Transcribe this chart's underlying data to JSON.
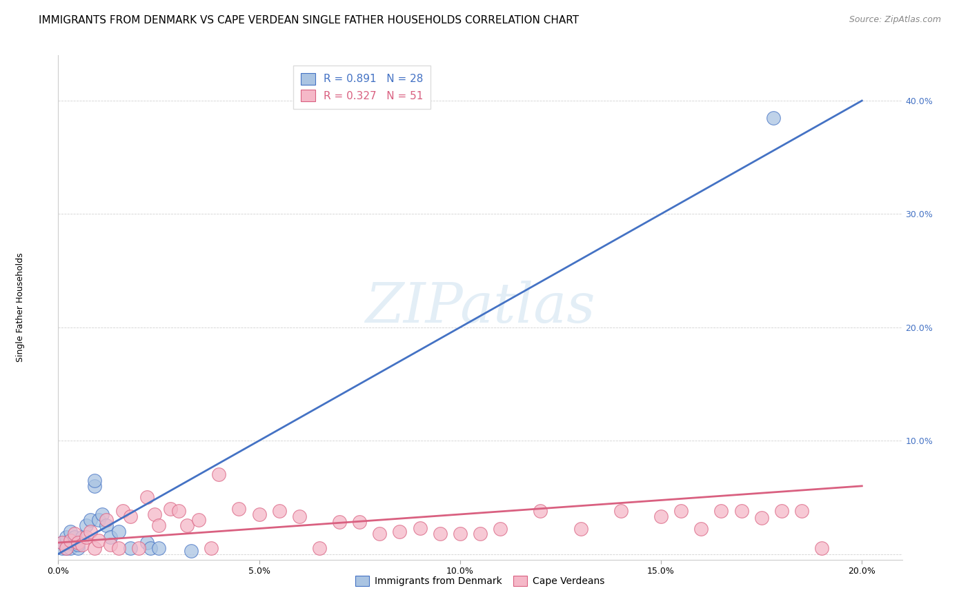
{
  "title": "IMMIGRANTS FROM DENMARK VS CAPE VERDEAN SINGLE FATHER HOUSEHOLDS CORRELATION CHART",
  "source": "Source: ZipAtlas.com",
  "ylabel": "Single Father Households",
  "ytick_values": [
    0.0,
    0.1,
    0.2,
    0.3,
    0.4
  ],
  "ytick_labels": [
    "",
    "10.0%",
    "20.0%",
    "30.0%",
    "40.0%"
  ],
  "xtick_values": [
    0.0,
    0.05,
    0.1,
    0.15,
    0.2
  ],
  "xtick_labels": [
    "0.0%",
    "5.0%",
    "10.0%",
    "15.0%",
    "20.0%"
  ],
  "xlim": [
    0.0,
    0.21
  ],
  "ylim": [
    -0.005,
    0.44
  ],
  "background_color": "#ffffff",
  "watermark": "ZIPatlas",
  "denmark_color": "#aac4e2",
  "denmark_edge_color": "#4472c4",
  "capeverde_color": "#f5b8c8",
  "capeverde_edge_color": "#d96080",
  "denmark_line_color": "#4472c4",
  "capeverde_line_color": "#d96080",
  "legend_text1": "R = 0.891   N = 28",
  "legend_text2": "R = 0.327   N = 51",
  "legend_color1": "#4472c4",
  "legend_color2": "#d96080",
  "bottom_legend1": "Immigrants from Denmark",
  "bottom_legend2": "Cape Verdeans",
  "title_fontsize": 11,
  "source_fontsize": 9,
  "axis_label_fontsize": 9,
  "tick_fontsize": 9,
  "legend_fontsize": 11,
  "denmark_x": [
    0.001,
    0.001,
    0.002,
    0.002,
    0.002,
    0.003,
    0.003,
    0.003,
    0.004,
    0.004,
    0.005,
    0.005,
    0.006,
    0.007,
    0.008,
    0.009,
    0.009,
    0.01,
    0.011,
    0.012,
    0.013,
    0.015,
    0.018,
    0.022,
    0.023,
    0.025,
    0.033,
    0.178
  ],
  "denmark_y": [
    0.005,
    0.01,
    0.005,
    0.01,
    0.015,
    0.005,
    0.01,
    0.02,
    0.008,
    0.015,
    0.005,
    0.008,
    0.015,
    0.025,
    0.03,
    0.06,
    0.065,
    0.03,
    0.035,
    0.025,
    0.015,
    0.02,
    0.005,
    0.01,
    0.005,
    0.005,
    0.003,
    0.385
  ],
  "capeverde_x": [
    0.001,
    0.002,
    0.003,
    0.004,
    0.005,
    0.006,
    0.007,
    0.008,
    0.009,
    0.01,
    0.012,
    0.013,
    0.015,
    0.016,
    0.018,
    0.02,
    0.022,
    0.024,
    0.025,
    0.028,
    0.03,
    0.032,
    0.035,
    0.038,
    0.04,
    0.045,
    0.05,
    0.055,
    0.06,
    0.065,
    0.07,
    0.075,
    0.08,
    0.085,
    0.09,
    0.095,
    0.1,
    0.105,
    0.11,
    0.12,
    0.13,
    0.14,
    0.15,
    0.155,
    0.16,
    0.165,
    0.17,
    0.175,
    0.18,
    0.185,
    0.19
  ],
  "capeverde_y": [
    0.01,
    0.005,
    0.012,
    0.018,
    0.01,
    0.008,
    0.015,
    0.02,
    0.005,
    0.012,
    0.03,
    0.008,
    0.005,
    0.038,
    0.033,
    0.005,
    0.05,
    0.035,
    0.025,
    0.04,
    0.038,
    0.025,
    0.03,
    0.005,
    0.07,
    0.04,
    0.035,
    0.038,
    0.033,
    0.005,
    0.028,
    0.028,
    0.018,
    0.02,
    0.023,
    0.018,
    0.018,
    0.018,
    0.022,
    0.038,
    0.022,
    0.038,
    0.033,
    0.038,
    0.022,
    0.038,
    0.038,
    0.032,
    0.038,
    0.038,
    0.005
  ],
  "dk_line_x": [
    0.0,
    0.2
  ],
  "dk_line_y": [
    0.0,
    0.4
  ],
  "cv_line_x": [
    0.0,
    0.2
  ],
  "cv_line_y": [
    0.01,
    0.06
  ]
}
